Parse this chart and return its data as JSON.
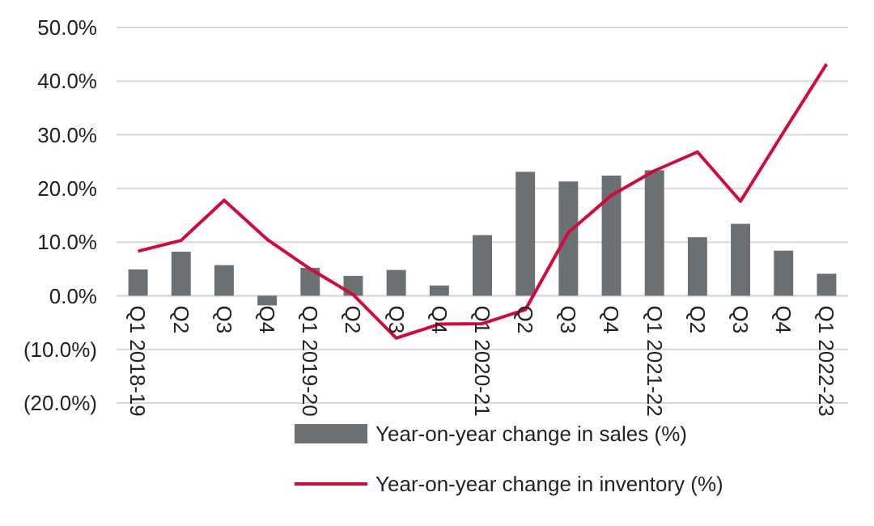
{
  "chart_data": {
    "type": "bar",
    "categories": [
      "Q1 2018-19",
      "Q2",
      "Q3",
      "Q4",
      "Q1 2019-20",
      "Q2",
      "Q3",
      "Q4",
      "Q1 2020-21",
      "Q2",
      "Q3",
      "Q4",
      "Q1 2021-22",
      "Q2",
      "Q3",
      "Q4",
      "Q1 2022-23"
    ],
    "series": [
      {
        "name": "Year-on-year change in sales (%)",
        "color": "#6b7075",
        "values": [
          4.9,
          8.2,
          5.7,
          -1.8,
          5.2,
          3.7,
          4.8,
          1.9,
          11.3,
          23.1,
          21.3,
          22.4,
          23.4,
          10.9,
          13.4,
          8.4,
          4.1
        ]
      },
      {
        "name": "Year-on-year change in inventory (%)",
        "type": "line",
        "color": "#d4083a",
        "values": [
          8.3,
          10.3,
          17.8,
          10.5,
          5.0,
          0.2,
          -7.9,
          -5.3,
          -5.2,
          -2.6,
          11.8,
          18.7,
          23.3,
          26.8,
          17.6,
          30.5,
          43.2
        ]
      }
    ],
    "ylim": [
      -20,
      50
    ],
    "yticks": [
      {
        "value": -20,
        "label": "(20.0%)"
      },
      {
        "value": -10,
        "label": "(10.0%)"
      },
      {
        "value": 0,
        "label": "0.0%"
      },
      {
        "value": 10,
        "label": "10.0%"
      },
      {
        "value": 20,
        "label": "20.0%"
      },
      {
        "value": 30,
        "label": "30.0%"
      },
      {
        "value": 40,
        "label": "40.0%"
      },
      {
        "value": 50,
        "label": "50.0%"
      }
    ],
    "grid": "y",
    "legend": "bottom",
    "marker": "none",
    "line_style": "solid"
  }
}
